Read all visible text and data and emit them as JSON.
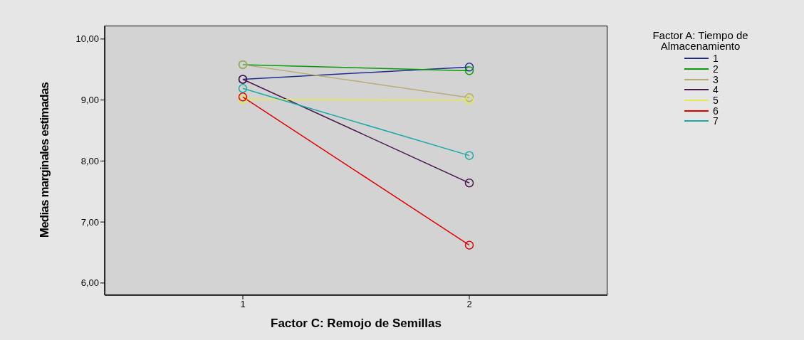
{
  "chart_data": {
    "type": "line",
    "xlabel": "Factor C: Remojo de Semillas",
    "ylabel": "Medias marginales estimadas",
    "legend_title": "Factor A: Tiempo de Almacenamiento",
    "categories": [
      "1",
      "2"
    ],
    "series": [
      {
        "name": "1",
        "color": "#1f2d8f",
        "values": [
          9.34,
          9.54
        ]
      },
      {
        "name": "2",
        "color": "#0a9a0a",
        "values": [
          9.58,
          9.48
        ]
      },
      {
        "name": "3",
        "color": "#b5ad73",
        "values": [
          9.58,
          9.04
        ]
      },
      {
        "name": "4",
        "color": "#4a1a4f",
        "values": [
          9.34,
          7.64
        ]
      },
      {
        "name": "5",
        "color": "#e8e84a",
        "values": [
          9.01,
          9.0
        ]
      },
      {
        "name": "6",
        "color": "#e00000",
        "values": [
          9.05,
          6.62
        ]
      },
      {
        "name": "7",
        "color": "#1aa8a8",
        "values": [
          9.19,
          8.09
        ]
      }
    ],
    "ylim": [
      5.8,
      10.22
    ],
    "yticks": [
      {
        "value": 6,
        "label": "6,00"
      },
      {
        "value": 7,
        "label": "7,00"
      },
      {
        "value": 8,
        "label": "8,00"
      },
      {
        "value": 9,
        "label": "9,00"
      },
      {
        "value": 10,
        "label": "10,00"
      }
    ],
    "legend": "right",
    "marker": "circle",
    "line_style": "solid"
  }
}
